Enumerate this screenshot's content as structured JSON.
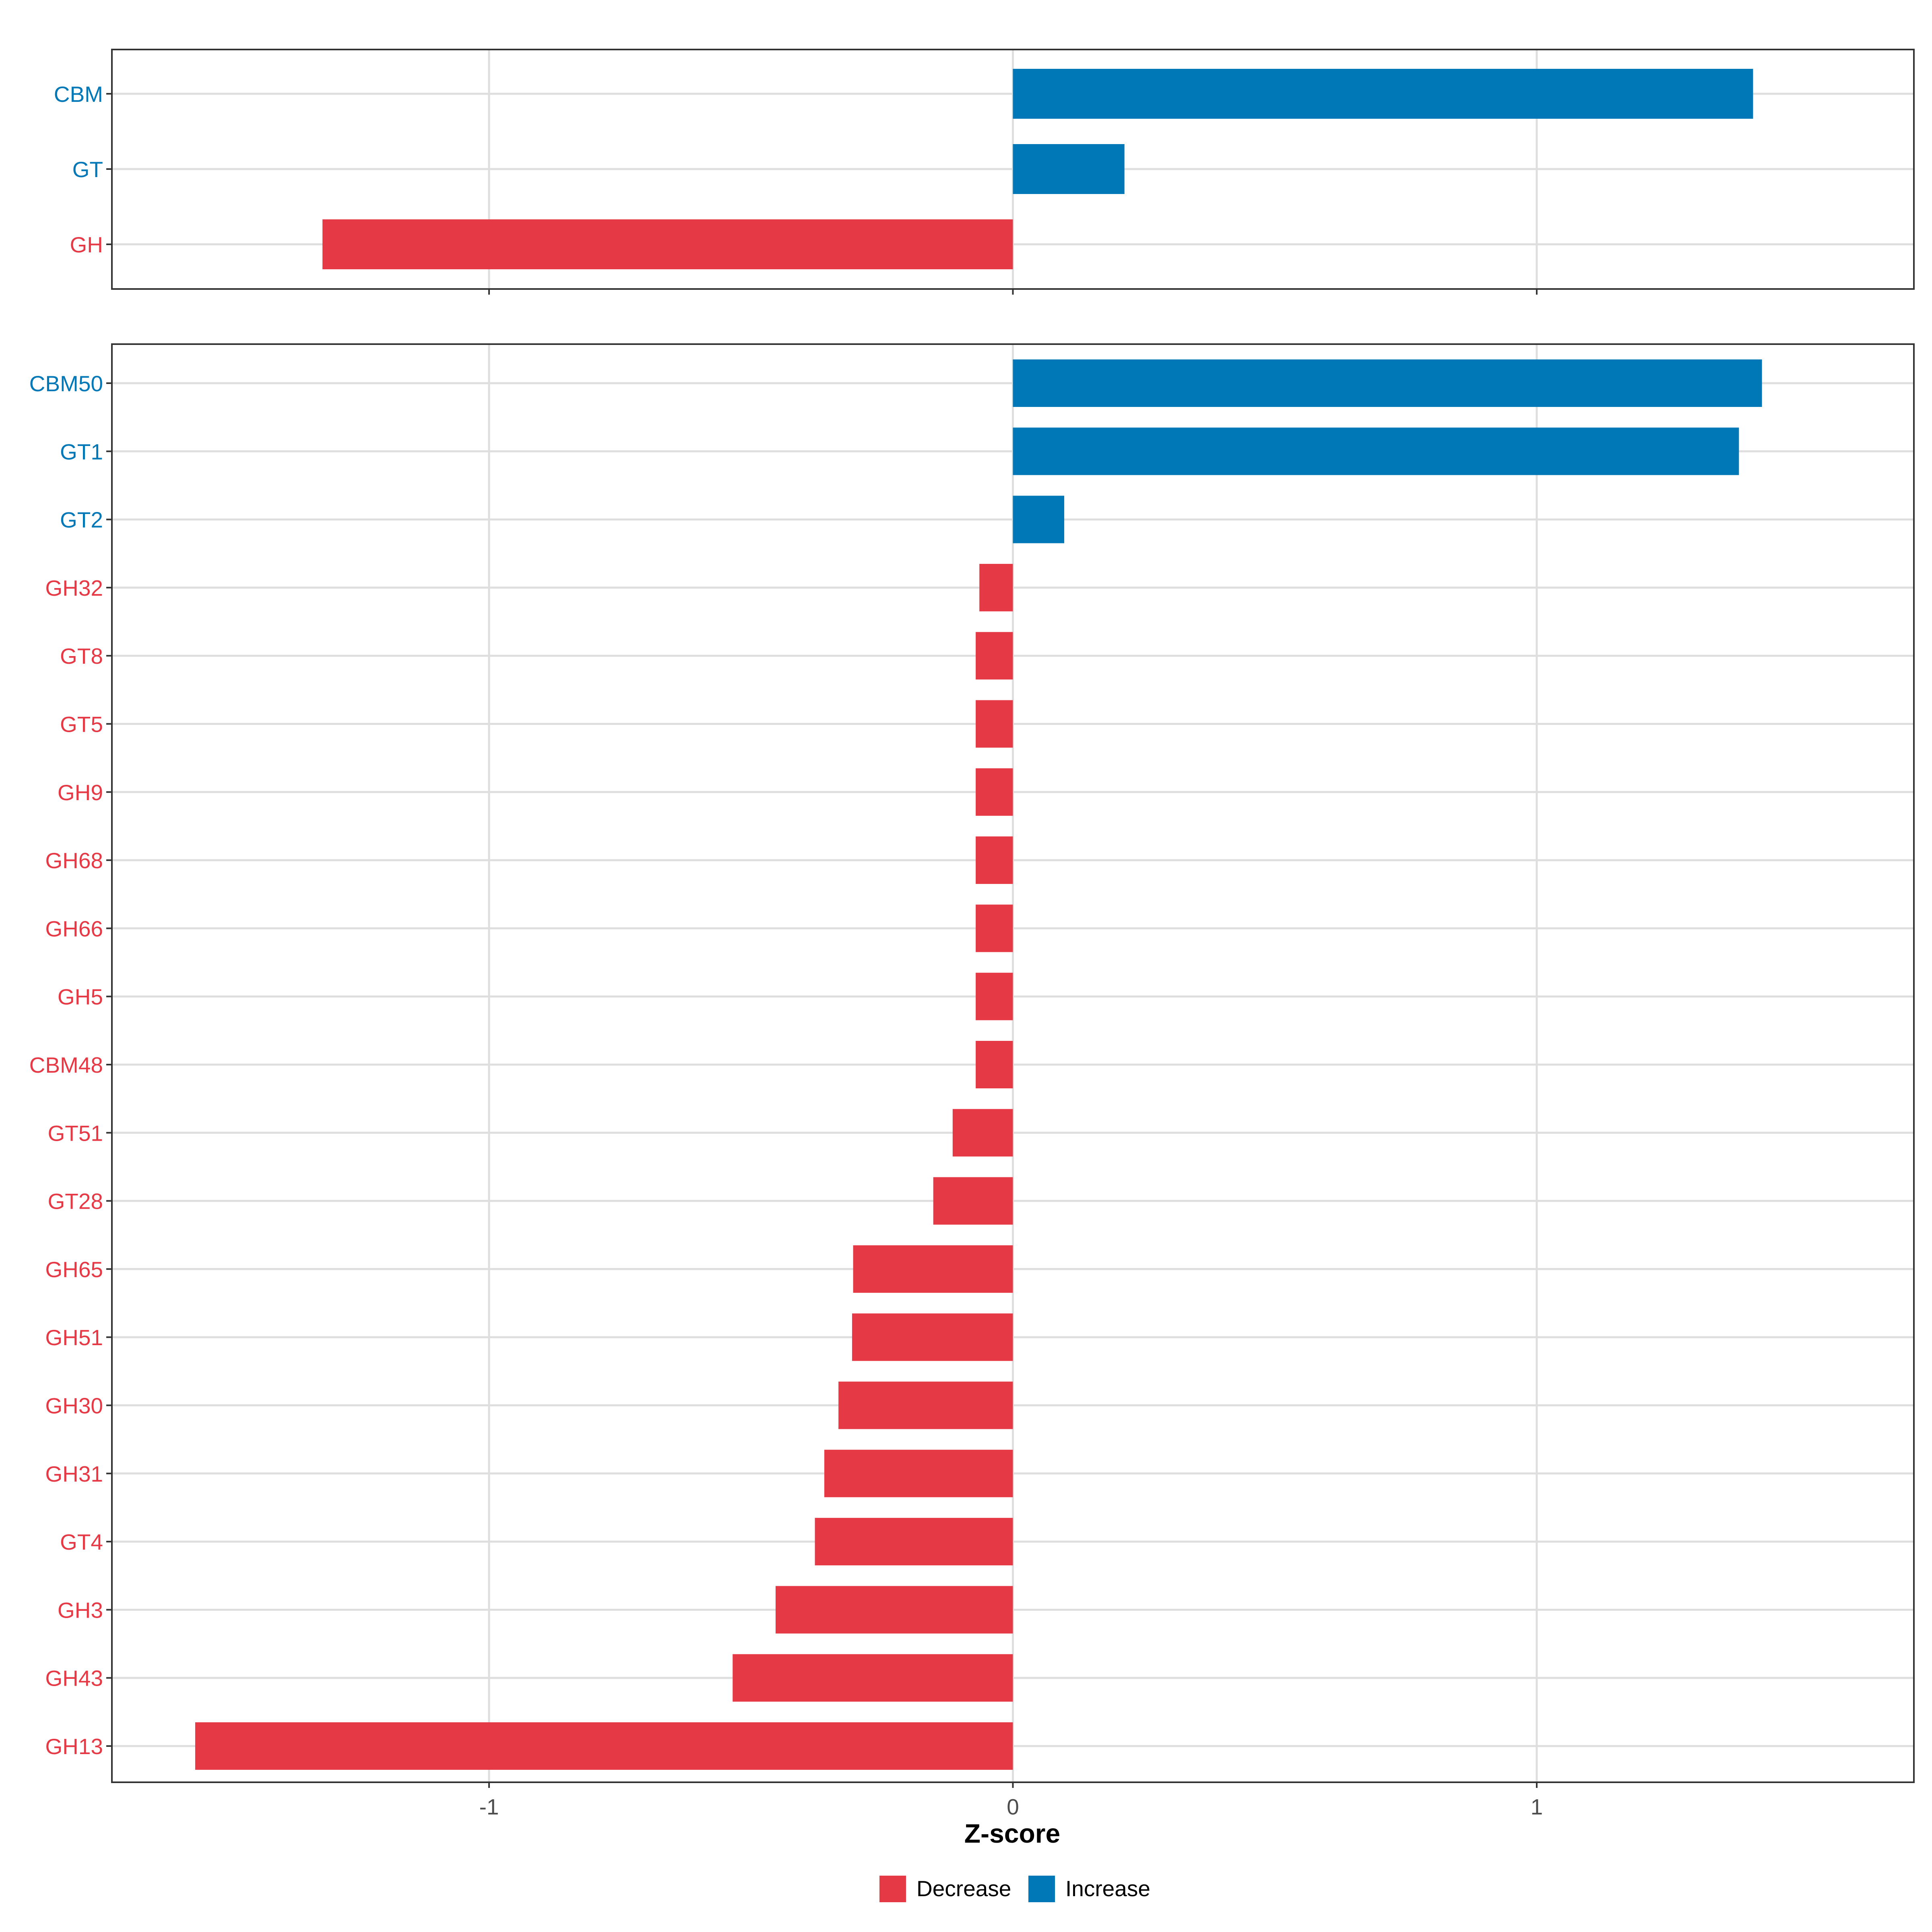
{
  "chart_data": {
    "type": "bar",
    "orientation": "horizontal",
    "xlabel": "Z-score",
    "xlim": [
      -1.72,
      1.72
    ],
    "x_ticks": [
      -1,
      0,
      1
    ],
    "x_tick_labels": [
      "-1",
      "0",
      "1"
    ],
    "grid": true,
    "legend_position": "bottom",
    "legend": [
      {
        "label": "Decrease",
        "color": "#e63946"
      },
      {
        "label": "Increase",
        "color": "#0077b6"
      }
    ],
    "panels": [
      {
        "categories": [
          "CBM",
          "GT",
          "GH"
        ],
        "values": [
          1.413,
          0.213,
          -1.318
        ]
      },
      {
        "categories": [
          "CBM50",
          "GT1",
          "GT2",
          "GH32",
          "GT8",
          "GT5",
          "GH9",
          "GH68",
          "GH66",
          "GH5",
          "CBM48",
          "GT51",
          "GT28",
          "GH65",
          "GH51",
          "GH30",
          "GH31",
          "GT4",
          "GH3",
          "GH43",
          "GH13"
        ],
        "values": [
          1.43,
          1.386,
          0.098,
          -0.064,
          -0.071,
          -0.071,
          -0.071,
          -0.071,
          -0.071,
          -0.071,
          -0.071,
          -0.115,
          -0.152,
          -0.305,
          -0.307,
          -0.333,
          -0.36,
          -0.378,
          -0.453,
          -0.535,
          -1.561
        ]
      }
    ]
  }
}
